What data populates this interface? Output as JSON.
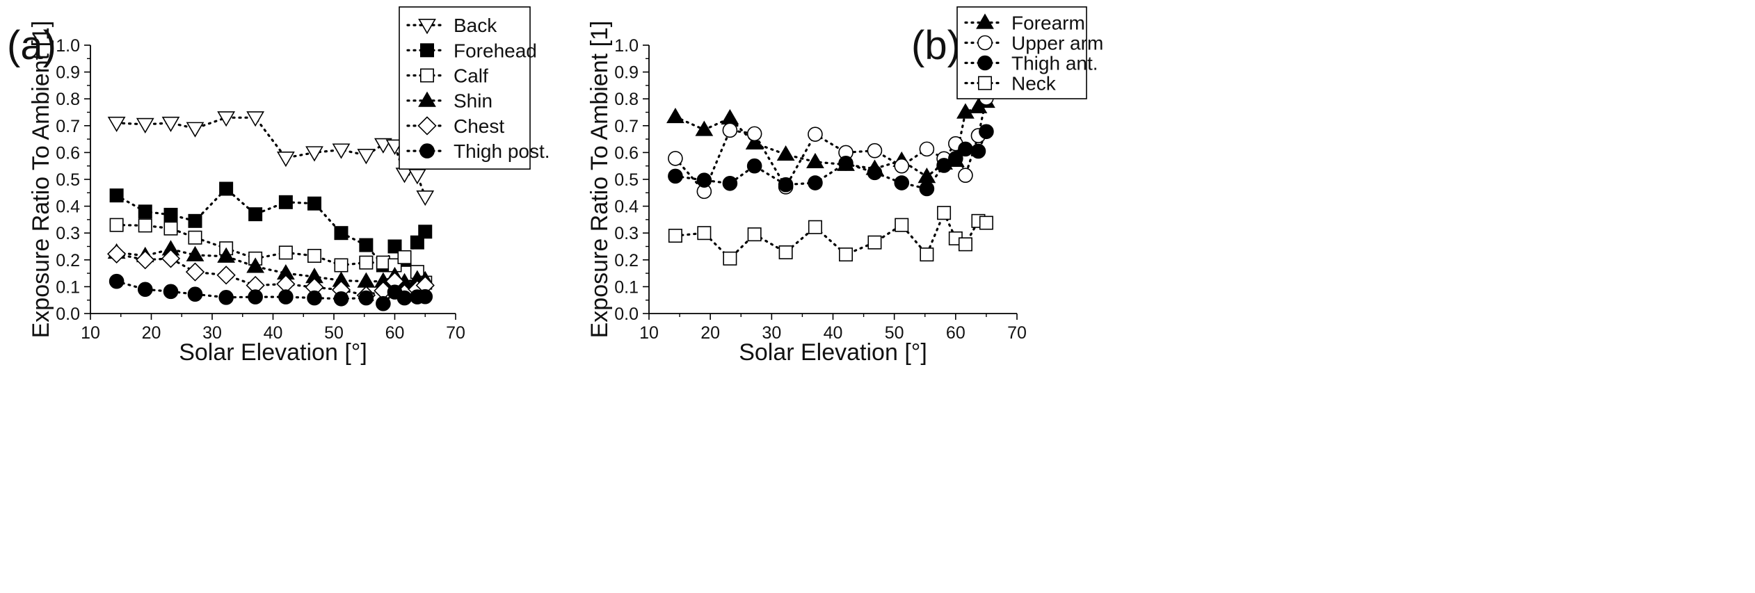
{
  "figure": {
    "panels": [
      "(a)",
      "(b)"
    ]
  },
  "chart_data": [
    {
      "type": "scatter",
      "panel_label": "(a)",
      "title": "",
      "xlabel": "Solar Elevation [°]",
      "ylabel": "Exposure Ratio To Ambient [1]",
      "xlim": [
        10,
        70
      ],
      "ylim": [
        0.0,
        1.0
      ],
      "xticks": [
        "10",
        "20",
        "30",
        "40",
        "50",
        "60",
        "70"
      ],
      "yticks": [
        "0.0",
        "0.1",
        "0.2",
        "0.3",
        "0.4",
        "0.5",
        "0.6",
        "0.7",
        "0.8",
        "0.9",
        "1.0"
      ],
      "grid": false,
      "line_style": "dotted",
      "legend_position": "top-right",
      "series": [
        {
          "name": "Back",
          "marker": "triangle-down-open",
          "x": [
            14.3,
            19,
            23.2,
            27.2,
            32.3,
            37.1,
            42.1,
            46.8,
            51.2,
            55.3,
            58.1,
            60,
            61.6,
            63.7,
            65
          ],
          "y": [
            0.71,
            0.705,
            0.71,
            0.69,
            0.73,
            0.73,
            0.58,
            0.6,
            0.61,
            0.59,
            0.63,
            0.625,
            0.52,
            0.515,
            0.435
          ]
        },
        {
          "name": "Forehead",
          "marker": "square-filled",
          "x": [
            14.3,
            19,
            23.2,
            27.2,
            32.3,
            37.1,
            42.1,
            46.8,
            51.2,
            55.3,
            58.1,
            60,
            61.6,
            63.7,
            65
          ],
          "y": [
            0.44,
            0.38,
            0.368,
            0.345,
            0.465,
            0.37,
            0.415,
            0.41,
            0.3,
            0.255,
            0.18,
            0.25,
            0.2,
            0.265,
            0.305
          ]
        },
        {
          "name": "Calf",
          "marker": "square-open",
          "x": [
            14.3,
            19,
            23.2,
            27.2,
            32.3,
            37.1,
            42.1,
            46.8,
            51.2,
            55.3,
            58.1,
            60,
            61.6,
            63.7,
            65
          ],
          "y": [
            0.33,
            0.328,
            0.317,
            0.283,
            0.243,
            0.205,
            0.227,
            0.215,
            0.18,
            0.19,
            0.19,
            0.18,
            0.21,
            0.155,
            0.115
          ]
        },
        {
          "name": "Shin",
          "marker": "triangle-up-filled",
          "x": [
            14.3,
            19,
            23.2,
            27.2,
            32.3,
            37.1,
            42.1,
            46.8,
            51.2,
            55.3,
            58.1,
            60,
            61.6,
            63.7,
            65
          ],
          "y": [
            0.228,
            0.215,
            0.24,
            0.218,
            0.213,
            0.175,
            0.15,
            0.137,
            0.123,
            0.12,
            0.12,
            0.14,
            0.117,
            0.128,
            0.125
          ]
        },
        {
          "name": "Chest",
          "marker": "diamond-open",
          "x": [
            14.3,
            19,
            23.2,
            27.2,
            32.3,
            37.1,
            42.1,
            46.8,
            51.2,
            55.3,
            58.1,
            60,
            61.6,
            63.7,
            65
          ],
          "y": [
            0.222,
            0.2,
            0.205,
            0.155,
            0.143,
            0.105,
            0.11,
            0.098,
            0.088,
            0.068,
            0.085,
            0.12,
            0.075,
            0.09,
            0.105
          ]
        },
        {
          "name": "Thigh post.",
          "marker": "circle-filled",
          "x": [
            14.3,
            19,
            23.2,
            27.2,
            32.3,
            37.1,
            42.1,
            46.8,
            51.2,
            55.3,
            58.1,
            60,
            61.6,
            63.7,
            65
          ],
          "y": [
            0.12,
            0.09,
            0.082,
            0.072,
            0.06,
            0.062,
            0.062,
            0.058,
            0.055,
            0.058,
            0.037,
            0.08,
            0.058,
            0.062,
            0.063
          ]
        }
      ]
    },
    {
      "type": "scatter",
      "panel_label": "(b)",
      "title": "",
      "xlabel": "Solar Elevation [°]",
      "ylabel": "Exposure Ratio To Ambient [1]",
      "xlim": [
        10,
        70
      ],
      "ylim": [
        0.0,
        1.0
      ],
      "xticks": [
        "10",
        "20",
        "30",
        "40",
        "50",
        "60",
        "70"
      ],
      "yticks": [
        "0.0",
        "0.1",
        "0.2",
        "0.3",
        "0.4",
        "0.5",
        "0.6",
        "0.7",
        "0.8",
        "0.9",
        "1.0"
      ],
      "grid": false,
      "line_style": "dotted",
      "legend_position": "top-right",
      "series": [
        {
          "name": "Forearm",
          "marker": "triangle-up-filled",
          "x": [
            14.3,
            19,
            23.2,
            27.2,
            32.3,
            37.1,
            42.1,
            46.8,
            51.2,
            55.3,
            58.1,
            60,
            61.6,
            63.7,
            65
          ],
          "y": [
            0.733,
            0.685,
            0.728,
            0.635,
            0.593,
            0.565,
            0.555,
            0.54,
            0.57,
            0.51,
            0.56,
            0.57,
            0.75,
            0.77,
            0.79
          ]
        },
        {
          "name": "Upper arm",
          "marker": "circle-open",
          "x": [
            14.3,
            19,
            23.2,
            27.2,
            32.3,
            37.1,
            42.1,
            46.8,
            51.2,
            55.3,
            58.1,
            60,
            61.6,
            63.7,
            65
          ],
          "y": [
            0.578,
            0.455,
            0.683,
            0.67,
            0.472,
            0.668,
            0.6,
            0.607,
            0.55,
            0.613,
            0.577,
            0.633,
            0.515,
            0.663,
            0.803
          ]
        },
        {
          "name": "Thigh ant.",
          "marker": "circle-filled",
          "x": [
            14.3,
            19,
            23.2,
            27.2,
            32.3,
            37.1,
            42.1,
            46.8,
            51.2,
            55.3,
            58.1,
            60,
            61.6,
            63.7,
            65
          ],
          "y": [
            0.512,
            0.497,
            0.485,
            0.55,
            0.48,
            0.487,
            0.56,
            0.525,
            0.487,
            0.465,
            0.552,
            0.578,
            0.613,
            0.605,
            0.678
          ]
        },
        {
          "name": "Neck",
          "marker": "square-open",
          "x": [
            14.3,
            19,
            23.2,
            27.2,
            32.3,
            37.1,
            42.1,
            46.8,
            51.2,
            55.3,
            58.1,
            60,
            61.6,
            63.7,
            65
          ],
          "y": [
            0.29,
            0.3,
            0.205,
            0.295,
            0.228,
            0.322,
            0.22,
            0.265,
            0.33,
            0.22,
            0.375,
            0.28,
            0.258,
            0.345,
            0.338
          ]
        }
      ]
    }
  ]
}
